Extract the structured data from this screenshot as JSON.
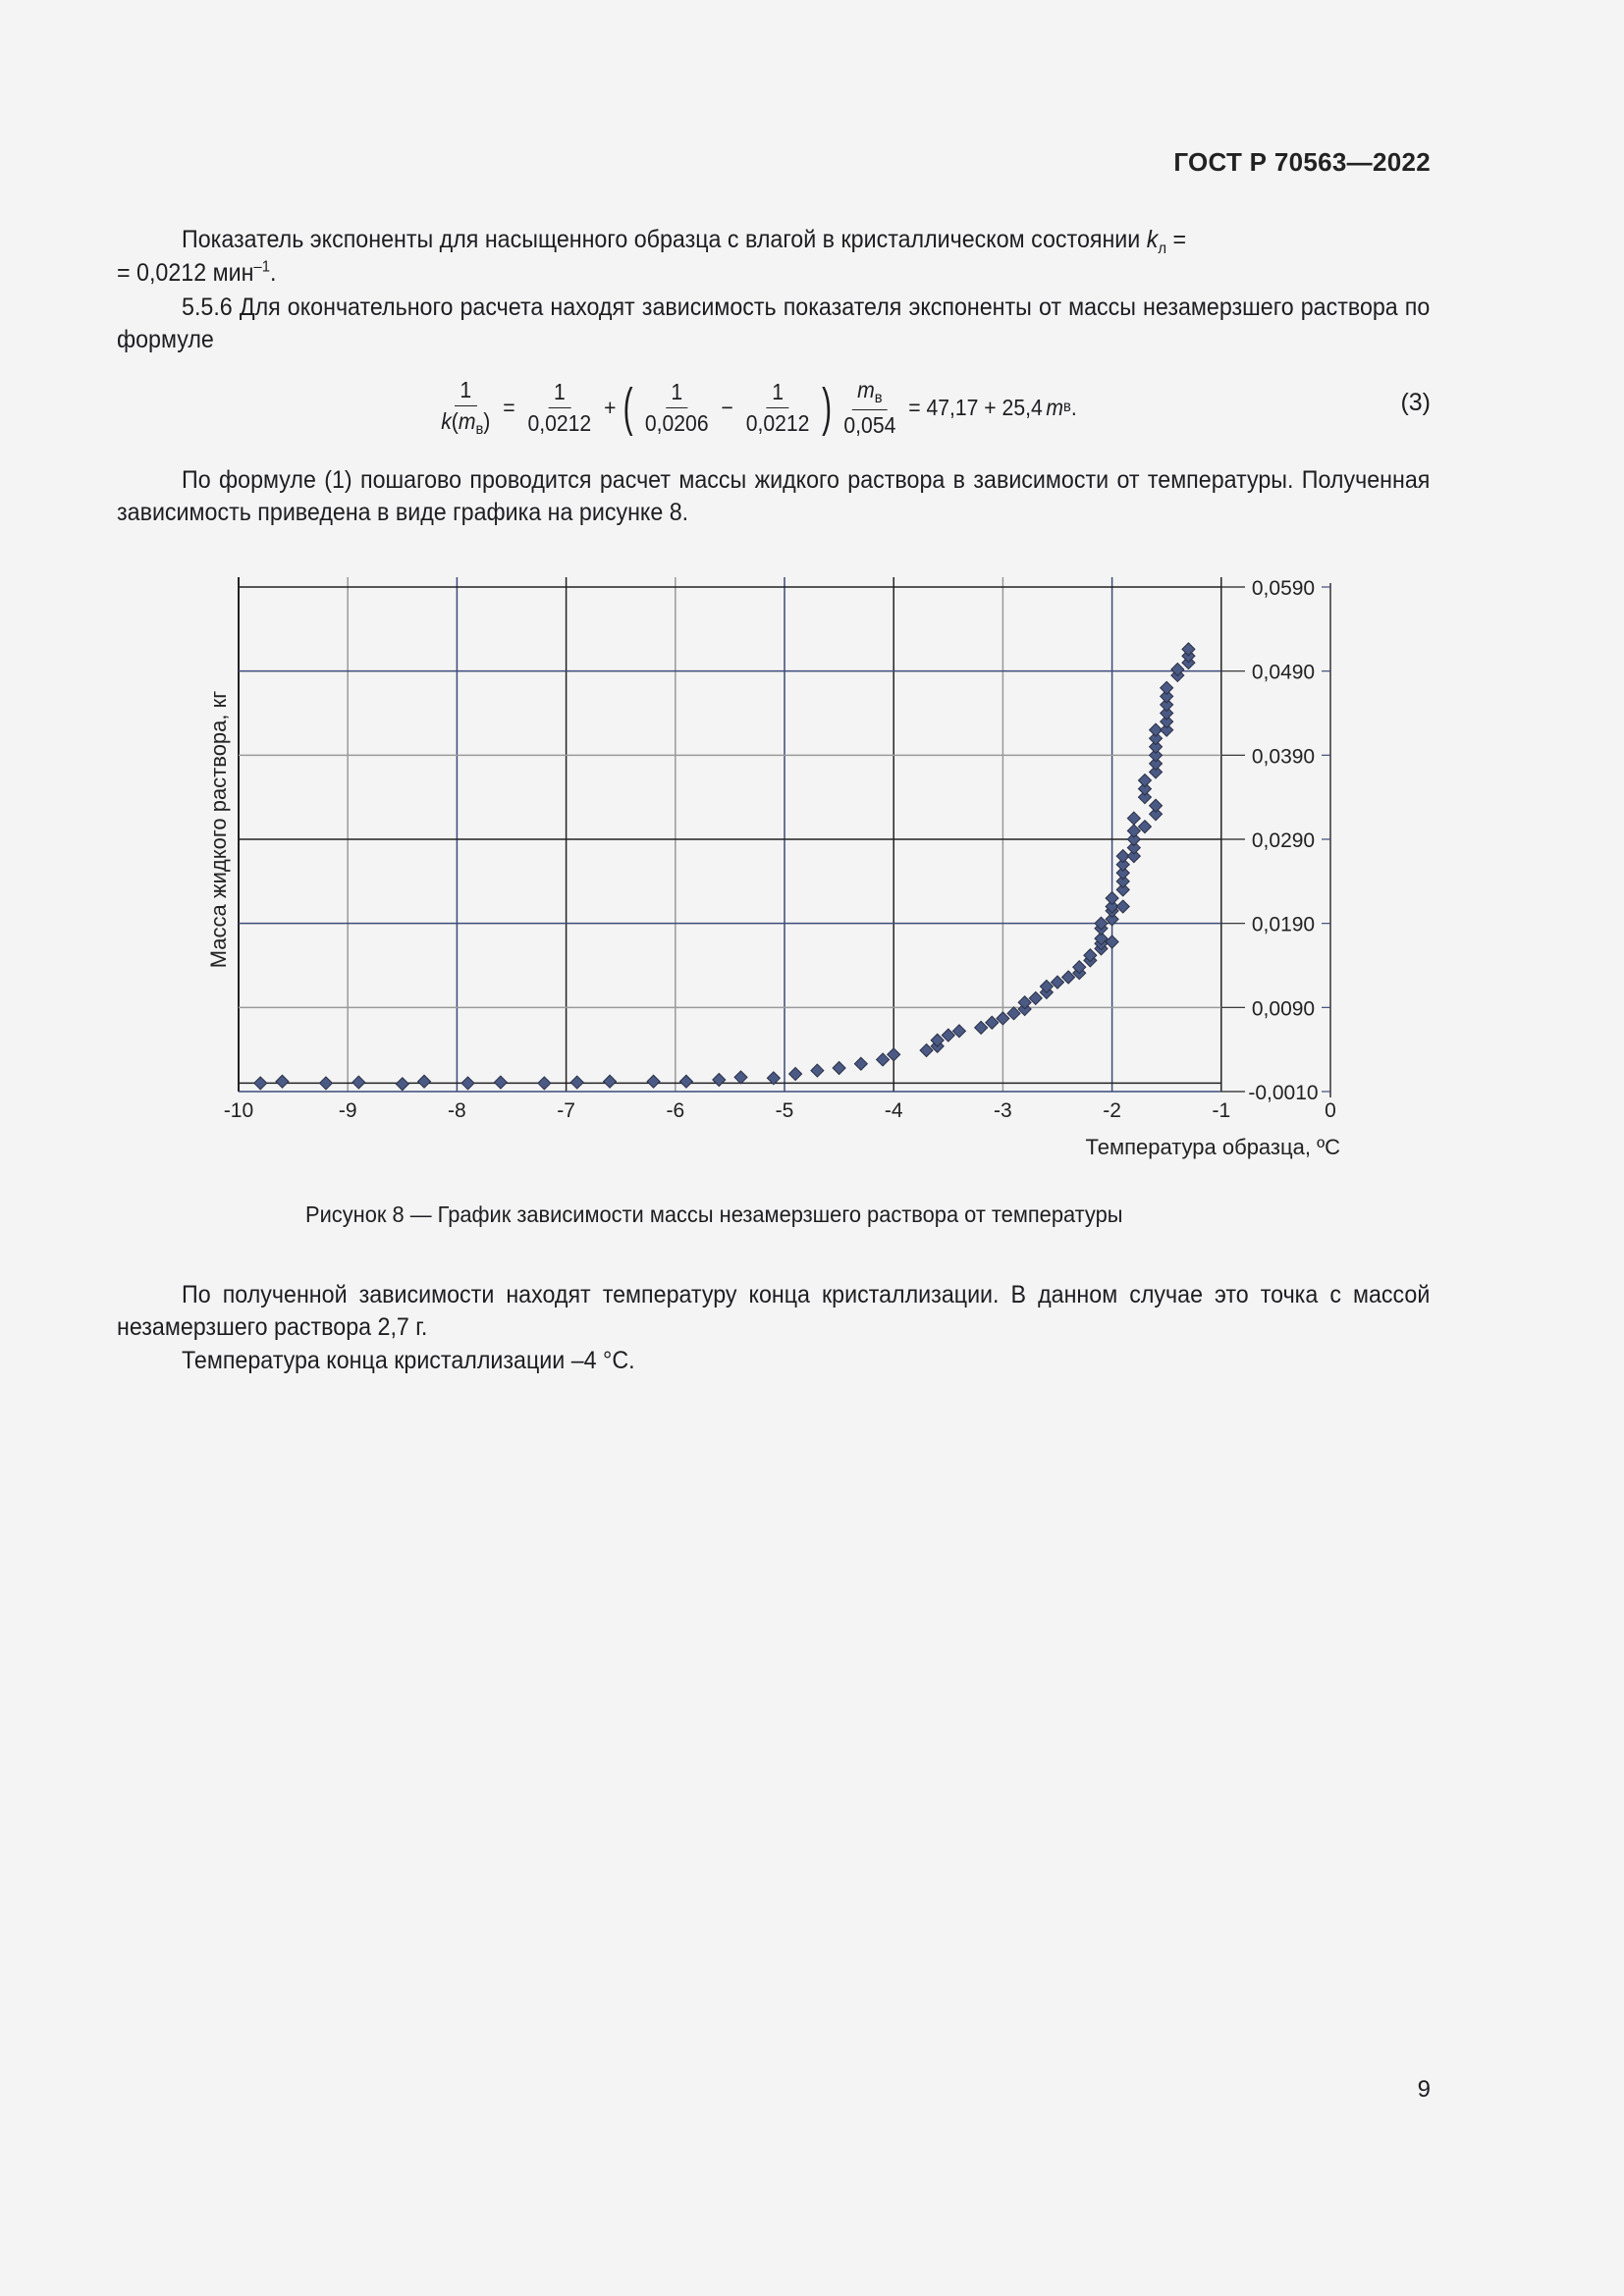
{
  "header": {
    "standard": "ГОСТ Р 70563—2022"
  },
  "paragraphs": {
    "p1_main": "Показатель экспоненты для насыщенного образца с влагой в кристаллическом состоянии ",
    "p1_k": "k",
    "p1_k_sub": "л",
    "p1_eq": " =",
    "p1_line2_pre": "= 0,0212 мин",
    "p1_line2_sup": "–1",
    "p1_line2_post": ".",
    "p2": "5.5.6 Для окончательного расчета находят зависимость показателя экспоненты от массы незамерзшего раствора по формуле",
    "p3": "По формуле (1) пошагово проводится расчет массы жидкого раствора в зависимости от температуры. Полученная зависимость приведена в виде графика на рисунке 8.",
    "p4": "По полученной зависимости находят температуру конца кристаллизации. В данном случае это точка с массой незамерзшего раствора 2,7 г.",
    "p5": "Температура конца кристаллизации –4 °C."
  },
  "formula": {
    "lhs_num": "1",
    "lhs_den_k": "k",
    "lhs_den_m": "m",
    "lhs_den_sub": "в",
    "eq1": "=",
    "f1_num": "1",
    "f1_den": "0,0212",
    "plus": "+",
    "f2_num": "1",
    "f2_den": "0,0206",
    "minus": "−",
    "f3_num": "1",
    "f3_den": "0,0212",
    "f4_num_m": "m",
    "f4_num_sub": "в",
    "f4_den": "0,054",
    "eq2": "= 47,17 + 25,4",
    "tail_m": "m",
    "tail_sub": "в",
    "tail_dot": ".",
    "number": "(3)"
  },
  "figure": {
    "caption": "Рисунок 8 — График зависимости массы незамерзшего раствора от температуры"
  },
  "page_number": "9",
  "chart_data": {
    "type": "scatter",
    "title": "",
    "xlabel": "Температура образца, ºС",
    "ylabel": "Масса жидкого раствора, кг",
    "x_ticks": [
      "-10",
      "-9",
      "-8",
      "-7",
      "-6",
      "-5",
      "-4",
      "-3",
      "-2",
      "-1",
      "0"
    ],
    "y_ticks": [
      "-0,0010",
      "0,0090",
      "0,0190",
      "0,0290",
      "0,0390",
      "0,0490",
      "0,0590"
    ],
    "xlim": [
      -10,
      0
    ],
    "ylim": [
      -0.001,
      0.059
    ],
    "y_axis_position": "right",
    "grid": true,
    "marker": "diamond",
    "marker_color": "#4a5a85",
    "series": [
      {
        "name": "Масса жидкого раствора",
        "points": [
          [
            -9.8,
            0.0
          ],
          [
            -9.6,
            0.0002
          ],
          [
            -9.2,
            0.0
          ],
          [
            -8.9,
            0.0001
          ],
          [
            -8.5,
            -0.0001
          ],
          [
            -8.3,
            0.0002
          ],
          [
            -7.9,
            0.0
          ],
          [
            -7.6,
            0.0001
          ],
          [
            -7.2,
            0.0
          ],
          [
            -6.9,
            0.0001
          ],
          [
            -6.6,
            0.0002
          ],
          [
            -6.2,
            0.0002
          ],
          [
            -5.9,
            0.0002
          ],
          [
            -5.6,
            0.0004
          ],
          [
            -5.4,
            0.0007
          ],
          [
            -5.1,
            0.0006
          ],
          [
            -4.9,
            0.0011
          ],
          [
            -4.7,
            0.0015
          ],
          [
            -4.5,
            0.0018
          ],
          [
            -4.3,
            0.0023
          ],
          [
            -4.1,
            0.0028
          ],
          [
            -4.0,
            0.0034
          ],
          [
            -3.7,
            0.0039
          ],
          [
            -3.6,
            0.0044
          ],
          [
            -3.6,
            0.0051
          ],
          [
            -3.5,
            0.0057
          ],
          [
            -3.4,
            0.0062
          ],
          [
            -3.2,
            0.0066
          ],
          [
            -3.1,
            0.0072
          ],
          [
            -3.0,
            0.0077
          ],
          [
            -2.9,
            0.0083
          ],
          [
            -2.8,
            0.0088
          ],
          [
            -2.8,
            0.0096
          ],
          [
            -2.7,
            0.0101
          ],
          [
            -2.6,
            0.0108
          ],
          [
            -2.6,
            0.0115
          ],
          [
            -2.5,
            0.012
          ],
          [
            -2.4,
            0.0126
          ],
          [
            -2.3,
            0.0131
          ],
          [
            -2.3,
            0.0138
          ],
          [
            -2.2,
            0.0146
          ],
          [
            -2.2,
            0.0152
          ],
          [
            -2.1,
            0.016
          ],
          [
            -2.1,
            0.0166
          ],
          [
            -2.1,
            0.0172
          ],
          [
            -2.1,
            0.0184
          ],
          [
            -2.1,
            0.019
          ],
          [
            -2.0,
            0.0168
          ],
          [
            -2.0,
            0.0195
          ],
          [
            -2.0,
            0.0205
          ],
          [
            -2.0,
            0.021
          ],
          [
            -2.0,
            0.022
          ],
          [
            -1.9,
            0.021
          ],
          [
            -1.9,
            0.023
          ],
          [
            -1.9,
            0.024
          ],
          [
            -1.9,
            0.025
          ],
          [
            -1.9,
            0.026
          ],
          [
            -1.9,
            0.027
          ],
          [
            -1.8,
            0.027
          ],
          [
            -1.8,
            0.028
          ],
          [
            -1.8,
            0.029
          ],
          [
            -1.8,
            0.03
          ],
          [
            -1.8,
            0.0315
          ],
          [
            -1.7,
            0.0305
          ],
          [
            -1.7,
            0.034
          ],
          [
            -1.7,
            0.035
          ],
          [
            -1.7,
            0.036
          ],
          [
            -1.6,
            0.032
          ],
          [
            -1.6,
            0.033
          ],
          [
            -1.6,
            0.037
          ],
          [
            -1.6,
            0.038
          ],
          [
            -1.6,
            0.039
          ],
          [
            -1.6,
            0.04
          ],
          [
            -1.6,
            0.041
          ],
          [
            -1.6,
            0.042
          ],
          [
            -1.5,
            0.042
          ],
          [
            -1.5,
            0.043
          ],
          [
            -1.5,
            0.044
          ],
          [
            -1.5,
            0.045
          ],
          [
            -1.5,
            0.046
          ],
          [
            -1.5,
            0.047
          ],
          [
            -1.4,
            0.0485
          ],
          [
            -1.4,
            0.0492
          ],
          [
            -1.3,
            0.05
          ],
          [
            -1.3,
            0.0508
          ],
          [
            -1.3,
            0.0516
          ]
        ]
      }
    ],
    "annotation": "Температура конца кристаллизации –4 °C (масса 2,7 г)"
  }
}
